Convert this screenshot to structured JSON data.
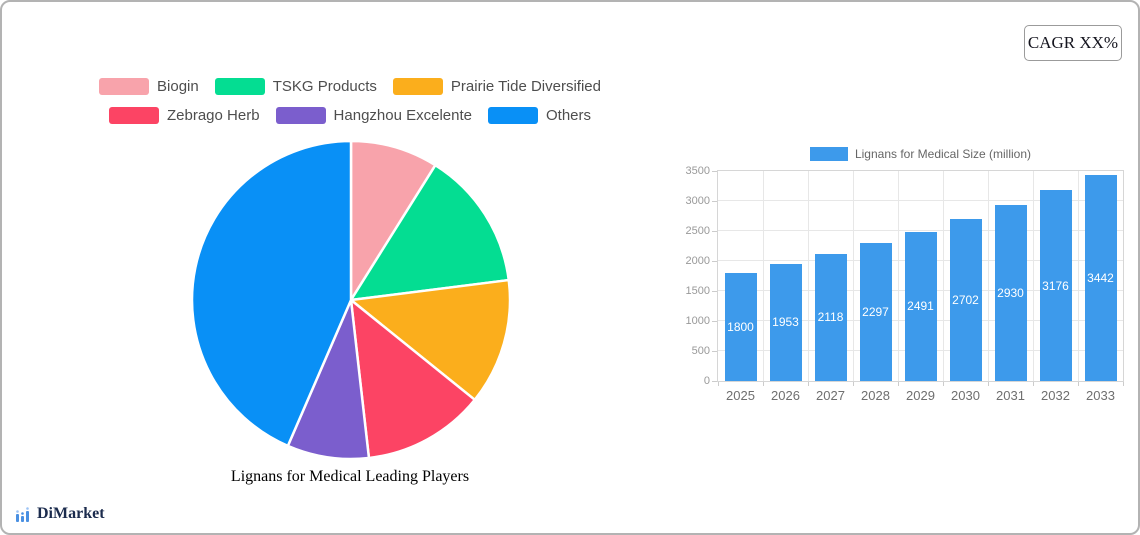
{
  "badge": {
    "label": "CAGR XX%"
  },
  "logo": {
    "text": "DiMarket",
    "icon": "bar-chart-logo-icon"
  },
  "chart_data": [
    {
      "type": "pie",
      "title": "Lignans for Medical Leading Players",
      "labels": [
        "Biogin",
        "TSKG Products",
        "Prairie Tide Diversified",
        "Zebrago Herb",
        "Hangzhou Excelente",
        "Others"
      ],
      "values_pct": [
        8.9,
        14.1,
        12.8,
        12.4,
        8.3,
        43.5
      ],
      "colors": [
        "#f8a3ab",
        "#04dd92",
        "#fbae1c",
        "#fc4464",
        "#7b5ecd",
        "#0990f6"
      ],
      "legend_position": "top",
      "legend_rows": 2,
      "start_angle_deg": 0
    },
    {
      "type": "bar",
      "series_label": "Lignans for Medical Size (million)",
      "categories": [
        "2025",
        "2026",
        "2027",
        "2028",
        "2029",
        "2030",
        "2031",
        "2032",
        "2033"
      ],
      "values": [
        1800,
        1953,
        2118,
        2297,
        2491,
        2702,
        2930,
        3176,
        3442
      ],
      "bar_color": "#3d9aeb",
      "value_label_color": "#ffffff",
      "ylim": [
        0,
        3500
      ],
      "ytick_step": 500,
      "grid": true,
      "legend_position": "top"
    }
  ]
}
